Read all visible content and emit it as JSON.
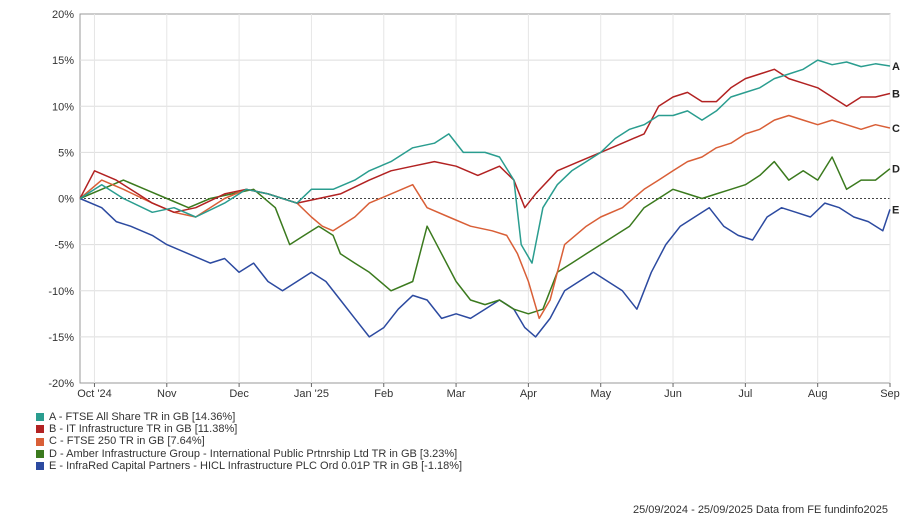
{
  "chart_data": {
    "type": "line",
    "ylim": [
      -20,
      20
    ],
    "yticks": [
      "20%",
      "15%",
      "10%",
      "5%",
      "0%",
      "-5%",
      "-10%",
      "-15%",
      "-20%"
    ],
    "xticks": [
      "Oct '24",
      "Nov",
      "Dec",
      "Jan '25",
      "Feb",
      "Mar",
      "Apr",
      "May",
      "Jun",
      "Jul",
      "Aug",
      "Sep"
    ],
    "grid": true,
    "legend_position": "bottom-left",
    "series": [
      {
        "name": "A - FTSE All Share TR in GB [14.36%]",
        "end_label": "A",
        "color": "#2a9d8f",
        "points": [
          [
            0,
            0
          ],
          [
            0.3,
            1.5
          ],
          [
            0.6,
            0
          ],
          [
            1,
            -1.5
          ],
          [
            1.3,
            -1
          ],
          [
            1.6,
            -2
          ],
          [
            2,
            -0.5
          ],
          [
            2.3,
            1
          ],
          [
            2.6,
            0.5
          ],
          [
            3,
            -0.5
          ],
          [
            3.2,
            1
          ],
          [
            3.5,
            1
          ],
          [
            3.8,
            2
          ],
          [
            4,
            3
          ],
          [
            4.3,
            4
          ],
          [
            4.6,
            5.5
          ],
          [
            4.9,
            6
          ],
          [
            5.1,
            7
          ],
          [
            5.3,
            5
          ],
          [
            5.6,
            5
          ],
          [
            5.8,
            4.5
          ],
          [
            6,
            2
          ],
          [
            6.1,
            -5
          ],
          [
            6.25,
            -7
          ],
          [
            6.4,
            -1
          ],
          [
            6.6,
            1.5
          ],
          [
            6.8,
            3
          ],
          [
            7,
            4
          ],
          [
            7.2,
            5
          ],
          [
            7.4,
            6.5
          ],
          [
            7.6,
            7.5
          ],
          [
            7.8,
            8
          ],
          [
            8,
            9
          ],
          [
            8.2,
            9
          ],
          [
            8.4,
            9.5
          ],
          [
            8.6,
            8.5
          ],
          [
            8.8,
            9.5
          ],
          [
            9,
            11
          ],
          [
            9.2,
            11.5
          ],
          [
            9.4,
            12
          ],
          [
            9.6,
            13
          ],
          [
            9.8,
            13.5
          ],
          [
            10,
            14
          ],
          [
            10.2,
            15
          ],
          [
            10.4,
            14.5
          ],
          [
            10.6,
            14.8
          ],
          [
            10.8,
            14.3
          ],
          [
            11,
            14.6
          ],
          [
            11.2,
            14.36
          ]
        ]
      },
      {
        "name": "B - IT Infrastructure TR in GB [11.38%]",
        "end_label": "B",
        "color": "#b22222",
        "points": [
          [
            0,
            0
          ],
          [
            0.2,
            3
          ],
          [
            0.5,
            2
          ],
          [
            0.8,
            0.5
          ],
          [
            1,
            -0.5
          ],
          [
            1.3,
            -1.5
          ],
          [
            1.6,
            -1
          ],
          [
            2,
            0.5
          ],
          [
            2.3,
            1
          ],
          [
            2.6,
            0.5
          ],
          [
            3,
            -0.5
          ],
          [
            3.3,
            0
          ],
          [
            3.6,
            0.5
          ],
          [
            4,
            2
          ],
          [
            4.3,
            3
          ],
          [
            4.6,
            3.5
          ],
          [
            4.9,
            4
          ],
          [
            5.2,
            3.5
          ],
          [
            5.5,
            2.5
          ],
          [
            5.8,
            3.5
          ],
          [
            6,
            2
          ],
          [
            6.15,
            -1
          ],
          [
            6.3,
            0.5
          ],
          [
            6.6,
            3
          ],
          [
            6.9,
            4
          ],
          [
            7.2,
            5
          ],
          [
            7.5,
            6
          ],
          [
            7.8,
            7
          ],
          [
            8,
            10
          ],
          [
            8.2,
            11
          ],
          [
            8.4,
            11.5
          ],
          [
            8.6,
            10.5
          ],
          [
            8.8,
            10.5
          ],
          [
            9,
            12
          ],
          [
            9.2,
            13
          ],
          [
            9.4,
            13.5
          ],
          [
            9.6,
            14
          ],
          [
            9.8,
            13
          ],
          [
            10,
            12.5
          ],
          [
            10.2,
            12
          ],
          [
            10.4,
            11
          ],
          [
            10.6,
            10
          ],
          [
            10.8,
            11
          ],
          [
            11,
            11
          ],
          [
            11.2,
            11.38
          ]
        ]
      },
      {
        "name": "C - FTSE 250 TR in GB [7.64%]",
        "end_label": "C",
        "color": "#d95f37",
        "points": [
          [
            0,
            0
          ],
          [
            0.3,
            2
          ],
          [
            0.6,
            1
          ],
          [
            1,
            -0.5
          ],
          [
            1.3,
            -1.5
          ],
          [
            1.6,
            -2
          ],
          [
            2,
            0
          ],
          [
            2.3,
            1
          ],
          [
            2.6,
            0.5
          ],
          [
            3,
            -0.5
          ],
          [
            3.2,
            -2
          ],
          [
            3.35,
            -3
          ],
          [
            3.5,
            -3.5
          ],
          [
            3.8,
            -2
          ],
          [
            4,
            -0.5
          ],
          [
            4.3,
            0.5
          ],
          [
            4.6,
            1.5
          ],
          [
            4.8,
            -1
          ],
          [
            5.1,
            -2
          ],
          [
            5.4,
            -3
          ],
          [
            5.7,
            -3.5
          ],
          [
            5.9,
            -4
          ],
          [
            6.05,
            -6
          ],
          [
            6.2,
            -9
          ],
          [
            6.35,
            -13
          ],
          [
            6.5,
            -11
          ],
          [
            6.7,
            -5
          ],
          [
            7,
            -3
          ],
          [
            7.2,
            -2
          ],
          [
            7.5,
            -1
          ],
          [
            7.8,
            1
          ],
          [
            8,
            2
          ],
          [
            8.2,
            3
          ],
          [
            8.4,
            4
          ],
          [
            8.6,
            4.5
          ],
          [
            8.8,
            5.5
          ],
          [
            9,
            6
          ],
          [
            9.2,
            7
          ],
          [
            9.4,
            7.5
          ],
          [
            9.6,
            8.5
          ],
          [
            9.8,
            9
          ],
          [
            10,
            8.5
          ],
          [
            10.2,
            8
          ],
          [
            10.4,
            8.5
          ],
          [
            10.6,
            8
          ],
          [
            10.8,
            7.5
          ],
          [
            11,
            8
          ],
          [
            11.2,
            7.64
          ]
        ]
      },
      {
        "name": "D - Amber Infrastructure Group - International Public Prtnrship Ltd TR in GB [3.23%]",
        "end_label": "D",
        "color": "#3b7a1e",
        "points": [
          [
            0,
            0
          ],
          [
            0.3,
            1
          ],
          [
            0.6,
            2
          ],
          [
            0.9,
            1
          ],
          [
            1.2,
            0
          ],
          [
            1.5,
            -1
          ],
          [
            1.8,
            0
          ],
          [
            2.1,
            0.5
          ],
          [
            2.4,
            1
          ],
          [
            2.7,
            -1
          ],
          [
            2.9,
            -5
          ],
          [
            3.1,
            -4
          ],
          [
            3.3,
            -3
          ],
          [
            3.5,
            -4
          ],
          [
            3.6,
            -6
          ],
          [
            3.8,
            -7
          ],
          [
            4,
            -8
          ],
          [
            4.3,
            -10
          ],
          [
            4.6,
            -9
          ],
          [
            4.8,
            -3
          ],
          [
            5,
            -6
          ],
          [
            5.2,
            -9
          ],
          [
            5.4,
            -11
          ],
          [
            5.6,
            -11.5
          ],
          [
            5.8,
            -11
          ],
          [
            6,
            -12
          ],
          [
            6.2,
            -12.5
          ],
          [
            6.4,
            -12
          ],
          [
            6.6,
            -8
          ],
          [
            6.8,
            -7
          ],
          [
            7,
            -6
          ],
          [
            7.2,
            -5
          ],
          [
            7.4,
            -4
          ],
          [
            7.6,
            -3
          ],
          [
            7.8,
            -1
          ],
          [
            8,
            0
          ],
          [
            8.2,
            1
          ],
          [
            8.4,
            0.5
          ],
          [
            8.6,
            0
          ],
          [
            8.8,
            0.5
          ],
          [
            9,
            1
          ],
          [
            9.2,
            1.5
          ],
          [
            9.4,
            2.5
          ],
          [
            9.6,
            4
          ],
          [
            9.8,
            2
          ],
          [
            10,
            3
          ],
          [
            10.2,
            2
          ],
          [
            10.4,
            4.5
          ],
          [
            10.6,
            1
          ],
          [
            10.8,
            2
          ],
          [
            11,
            2
          ],
          [
            11.2,
            3.23
          ]
        ]
      },
      {
        "name": "E - InfraRed Capital Partners - HICL Infrastructure PLC Ord 0.01P TR in GB [-1.18%]",
        "end_label": "E",
        "color": "#2c4aa0",
        "points": [
          [
            0,
            0
          ],
          [
            0.3,
            -1
          ],
          [
            0.5,
            -2.5
          ],
          [
            0.7,
            -3
          ],
          [
            1,
            -4
          ],
          [
            1.2,
            -5
          ],
          [
            1.5,
            -6
          ],
          [
            1.8,
            -7
          ],
          [
            2,
            -6.5
          ],
          [
            2.2,
            -8
          ],
          [
            2.4,
            -7
          ],
          [
            2.6,
            -9
          ],
          [
            2.8,
            -10
          ],
          [
            3,
            -9
          ],
          [
            3.2,
            -8
          ],
          [
            3.4,
            -9
          ],
          [
            3.6,
            -11
          ],
          [
            3.8,
            -13
          ],
          [
            4,
            -15
          ],
          [
            4.2,
            -14
          ],
          [
            4.4,
            -12
          ],
          [
            4.6,
            -10.5
          ],
          [
            4.8,
            -11
          ],
          [
            5,
            -13
          ],
          [
            5.2,
            -12.5
          ],
          [
            5.4,
            -13
          ],
          [
            5.6,
            -12
          ],
          [
            5.8,
            -11
          ],
          [
            6,
            -12
          ],
          [
            6.15,
            -14
          ],
          [
            6.3,
            -15
          ],
          [
            6.5,
            -13
          ],
          [
            6.7,
            -10
          ],
          [
            6.9,
            -9
          ],
          [
            7.1,
            -8
          ],
          [
            7.3,
            -9
          ],
          [
            7.5,
            -10
          ],
          [
            7.7,
            -12
          ],
          [
            7.9,
            -8
          ],
          [
            8.1,
            -5
          ],
          [
            8.3,
            -3
          ],
          [
            8.5,
            -2
          ],
          [
            8.7,
            -1
          ],
          [
            8.9,
            -3
          ],
          [
            9.1,
            -4
          ],
          [
            9.3,
            -4.5
          ],
          [
            9.5,
            -2
          ],
          [
            9.7,
            -1
          ],
          [
            9.9,
            -1.5
          ],
          [
            10.1,
            -2
          ],
          [
            10.3,
            -0.5
          ],
          [
            10.5,
            -1
          ],
          [
            10.7,
            -2
          ],
          [
            10.9,
            -2.5
          ],
          [
            11.1,
            -3.5
          ],
          [
            11.2,
            -1.18
          ]
        ]
      }
    ]
  },
  "footer": "25/09/2024 - 25/09/2025 Data from FE fundinfo2025"
}
